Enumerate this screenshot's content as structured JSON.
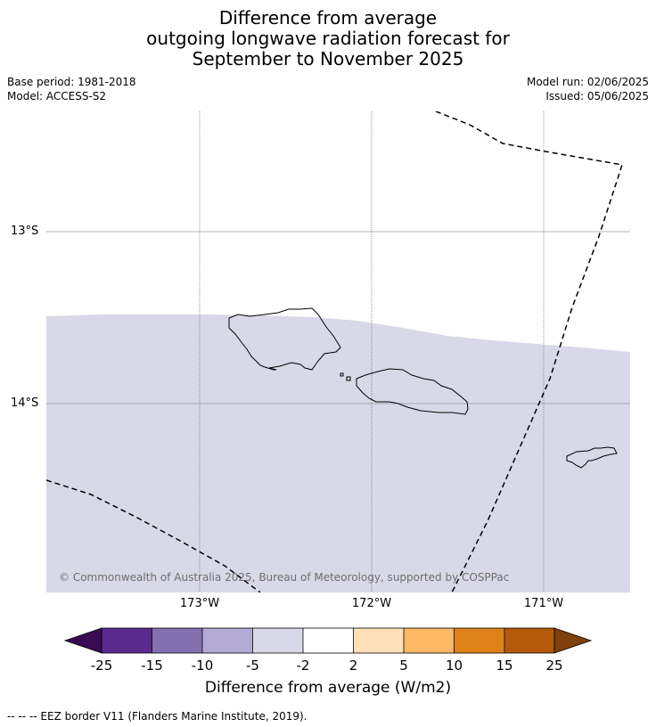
{
  "title": {
    "line1": "Difference from average",
    "line2": "outgoing longwave radiation forecast for",
    "line3": "September to November 2025"
  },
  "meta": {
    "base_period": "Base period: 1981-2018",
    "model": "Model: ACCESS-S2",
    "model_run": "Model run: 02/06/2025",
    "issued": "Issued: 05/06/2025"
  },
  "map": {
    "lat_labels": [
      "13°S",
      "14°S"
    ],
    "lon_labels": [
      "173°W",
      "172°W",
      "171°W"
    ],
    "fill_color": "#d8d8e9",
    "eez_style": "dashed black",
    "copyright": "© Commonwealth of Australia 2025, Bureau of Meteorology, supported by COSPPac"
  },
  "colorbar": {
    "label": "Difference from average (W/m2)",
    "ticks": [
      "-25",
      "-15",
      "-10",
      "-5",
      "-2",
      "2",
      "5",
      "10",
      "15",
      "25"
    ],
    "colors": [
      "#5c2a8e",
      "#8270b0",
      "#b2aad4",
      "#d8d8e9",
      "#ffffff",
      "#fde0b8",
      "#fdb865",
      "#e0821a",
      "#b45a0a"
    ],
    "under_color": "#3a0a52",
    "over_color": "#80400c"
  },
  "footnote": "--  --  -- EEZ border V11 (Flanders Marine Institute, 2019)."
}
